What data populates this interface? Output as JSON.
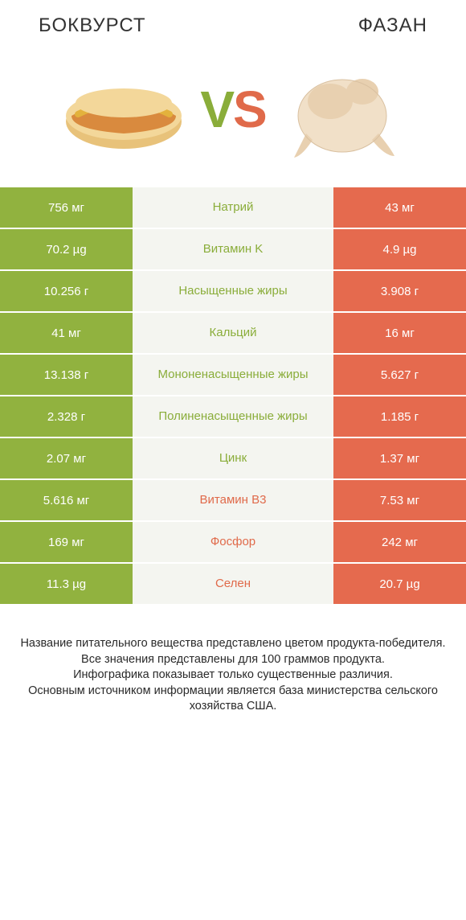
{
  "colors": {
    "left_bg": "#91b23f",
    "right_bg": "#e56a4e",
    "center_bg": "#f4f5f0",
    "label_left": "#8aad3a",
    "label_right": "#e06a4a",
    "text": "#333333"
  },
  "header": {
    "left": "БОКВУРСТ",
    "right": "ФАЗАН"
  },
  "vs": {
    "v": "V",
    "s": "S"
  },
  "icons": {
    "left_alt": "hotdog",
    "right_alt": "pheasant"
  },
  "rows": [
    {
      "left": "756 мг",
      "label": "Натрий",
      "right": "43 мг",
      "winner": "left"
    },
    {
      "left": "70.2 µg",
      "label": "Витамин K",
      "right": "4.9 µg",
      "winner": "left"
    },
    {
      "left": "10.256 г",
      "label": "Насыщенные жиры",
      "right": "3.908 г",
      "winner": "left"
    },
    {
      "left": "41 мг",
      "label": "Кальций",
      "right": "16 мг",
      "winner": "left"
    },
    {
      "left": "13.138 г",
      "label": "Мононенасыщенные жиры",
      "right": "5.627 г",
      "winner": "left"
    },
    {
      "left": "2.328 г",
      "label": "Полиненасыщенные жиры",
      "right": "1.185 г",
      "winner": "left"
    },
    {
      "left": "2.07 мг",
      "label": "Цинк",
      "right": "1.37 мг",
      "winner": "left"
    },
    {
      "left": "5.616 мг",
      "label": "Витамин B3",
      "right": "7.53 мг",
      "winner": "right"
    },
    {
      "left": "169 мг",
      "label": "Фосфор",
      "right": "242 мг",
      "winner": "right"
    },
    {
      "left": "11.3 µg",
      "label": "Селен",
      "right": "20.7 µg",
      "winner": "right"
    }
  ],
  "footer": {
    "line1": "Название питательного вещества представлено цветом продукта-победителя.",
    "line2": "Все значения представлены для 100 граммов продукта.",
    "line3": "Инфографика показывает только существенные различия.",
    "line4": "Основным источником информации является база министерства сельского хозяйства США."
  }
}
